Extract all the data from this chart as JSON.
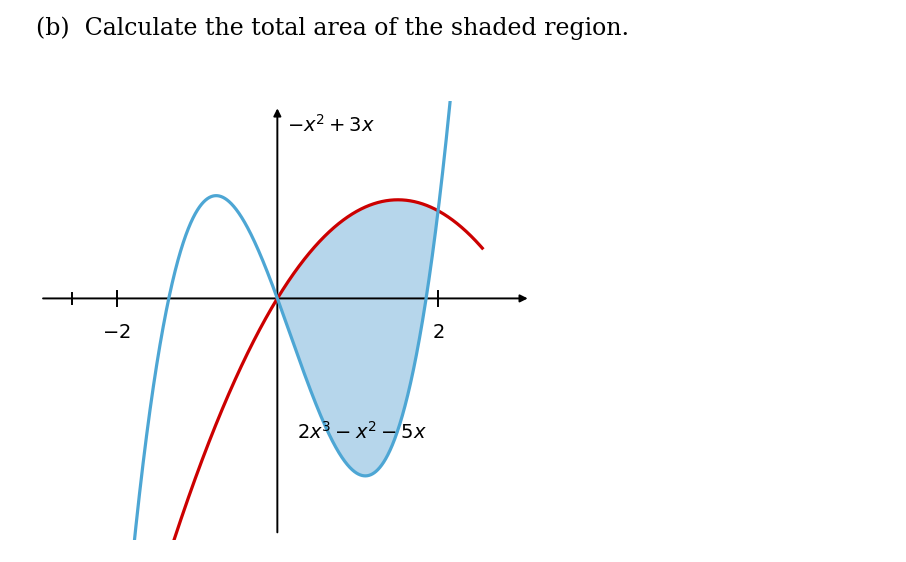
{
  "title": "(b)  Calculate the total area of the shaded region.",
  "title_fontsize": 17,
  "formula1_label": "$-x^2 + 3x$",
  "formula2_label": "$2x^3 - x^2 - 5x$",
  "x_tick_positions": [
    -2,
    2
  ],
  "curve1_color": "#cc0000",
  "curve2_color": "#4da6d4",
  "shade_color": "#aacfe8",
  "shade_alpha": 0.85,
  "axis_linewidth": 1.4,
  "curve_linewidth": 2.3,
  "background_color": "#ffffff",
  "xlim": [
    -3.0,
    3.2
  ],
  "ylim": [
    -5.5,
    4.5
  ],
  "x_plot_min": -2.65,
  "x_plot_max": 2.55
}
